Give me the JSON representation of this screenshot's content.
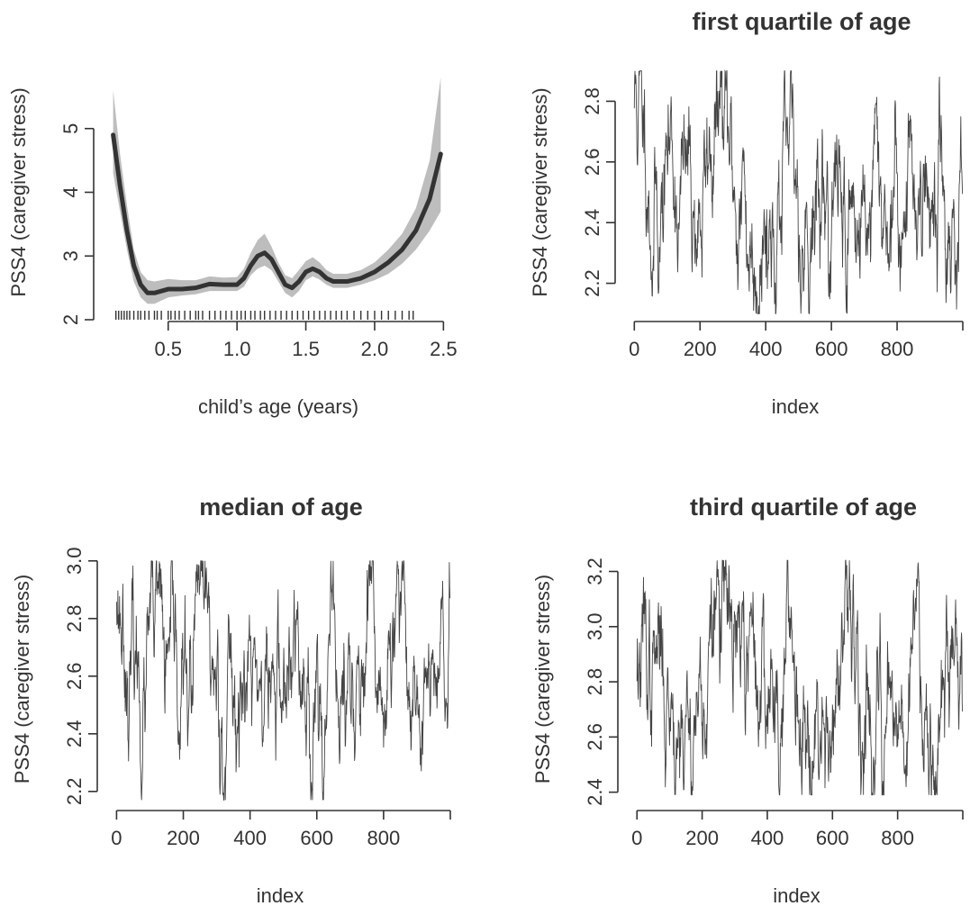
{
  "chart_data": [
    {
      "type": "line",
      "title": "",
      "xlabel": "child’s age (years)",
      "ylabel": "PSS4 (caregiver stress)",
      "xlim": [
        0.05,
        2.55
      ],
      "ylim": [
        2.0,
        6.0
      ],
      "x_ticks": [
        "0.5",
        "1.0",
        "1.5",
        "2.0",
        "2.5"
      ],
      "y_ticks": [
        "2",
        "3",
        "4",
        "5"
      ],
      "grid": false,
      "series": [
        {
          "x": [
            0.1,
            0.15,
            0.2,
            0.25,
            0.3,
            0.35,
            0.4,
            0.45,
            0.5,
            0.6,
            0.7,
            0.8,
            0.9,
            1.0,
            1.05,
            1.1,
            1.15,
            1.2,
            1.25,
            1.3,
            1.35,
            1.4,
            1.45,
            1.5,
            1.55,
            1.6,
            1.65,
            1.7,
            1.8,
            1.9,
            2.0,
            2.1,
            2.2,
            2.3,
            2.4,
            2.48
          ],
          "y": [
            4.9,
            4.1,
            3.4,
            2.85,
            2.55,
            2.42,
            2.42,
            2.45,
            2.48,
            2.48,
            2.5,
            2.56,
            2.55,
            2.55,
            2.65,
            2.85,
            3.0,
            3.05,
            2.95,
            2.75,
            2.55,
            2.5,
            2.6,
            2.75,
            2.8,
            2.75,
            2.65,
            2.6,
            2.6,
            2.65,
            2.75,
            2.9,
            3.1,
            3.4,
            3.9,
            4.6
          ],
          "lower": [
            4.3,
            3.7,
            3.1,
            2.6,
            2.35,
            2.25,
            2.25,
            2.3,
            2.35,
            2.38,
            2.4,
            2.45,
            2.45,
            2.45,
            2.52,
            2.7,
            2.8,
            2.85,
            2.78,
            2.6,
            2.42,
            2.35,
            2.45,
            2.62,
            2.68,
            2.63,
            2.55,
            2.5,
            2.5,
            2.55,
            2.62,
            2.72,
            2.88,
            3.1,
            3.4,
            3.7
          ],
          "upper": [
            5.6,
            4.6,
            3.8,
            3.1,
            2.75,
            2.62,
            2.6,
            2.62,
            2.64,
            2.62,
            2.62,
            2.68,
            2.66,
            2.67,
            2.8,
            3.05,
            3.25,
            3.35,
            3.15,
            2.9,
            2.7,
            2.65,
            2.78,
            2.92,
            2.98,
            2.9,
            2.78,
            2.72,
            2.72,
            2.78,
            2.9,
            3.1,
            3.35,
            3.75,
            4.5,
            5.8
          ]
        }
      ],
      "rug_x": [
        0.12,
        0.14,
        0.16,
        0.18,
        0.2,
        0.22,
        0.25,
        0.28,
        0.3,
        0.33,
        0.36,
        0.4,
        0.42,
        0.45,
        0.5,
        0.52,
        0.55,
        0.58,
        0.62,
        0.66,
        0.7,
        0.72,
        0.75,
        0.8,
        0.84,
        0.88,
        0.92,
        0.96,
        1.0,
        1.03,
        1.06,
        1.1,
        1.13,
        1.17,
        1.2,
        1.24,
        1.28,
        1.32,
        1.36,
        1.4,
        1.44,
        1.48,
        1.52,
        1.56,
        1.6,
        1.64,
        1.68,
        1.72,
        1.76,
        1.8,
        1.85,
        1.9,
        1.95,
        2.0,
        2.05,
        2.1,
        2.15,
        2.2,
        2.25,
        2.28
      ]
    },
    {
      "type": "line",
      "title": "first quartile of age",
      "xlabel": "index",
      "ylabel": "PSS4 (caregiver stress)",
      "xlim": [
        -20,
        1000
      ],
      "ylim": [
        2.08,
        2.92
      ],
      "x_ticks": [
        "0",
        "200",
        "400",
        "600",
        "800"
      ],
      "y_ticks": [
        "2.2",
        "2.4",
        "2.6",
        "2.8"
      ],
      "grid": false,
      "trace": {
        "n": 1000,
        "seed": 11,
        "mean": 2.47,
        "sd": 0.13,
        "ar": 0.93,
        "y0": 2.8,
        "bumps": [
          [
            0,
            40,
            0.3
          ],
          [
            80,
            130,
            0.15
          ],
          [
            220,
            270,
            0.3
          ],
          [
            330,
            370,
            -0.15
          ],
          [
            830,
            880,
            0.12
          ]
        ],
        "min": 2.1,
        "max": 2.9
      }
    },
    {
      "type": "line",
      "title": "median of age",
      "xlabel": "index",
      "ylabel": "PSS4 (caregiver stress)",
      "xlim": [
        -20,
        1000
      ],
      "ylim": [
        2.14,
        3.04
      ],
      "x_ticks": [
        "0",
        "200",
        "400",
        "600",
        "800"
      ],
      "y_ticks": [
        "2.2",
        "2.4",
        "2.6",
        "2.8",
        "3.0"
      ],
      "grid": false,
      "trace": {
        "n": 1000,
        "seed": 23,
        "mean": 2.55,
        "sd": 0.13,
        "ar": 0.93,
        "y0": 2.95,
        "bumps": [
          [
            0,
            30,
            0.3
          ],
          [
            90,
            130,
            0.15
          ],
          [
            230,
            270,
            0.25
          ],
          [
            140,
            160,
            -0.15
          ],
          [
            840,
            900,
            0.12
          ],
          [
            930,
            950,
            -0.12
          ]
        ],
        "min": 2.17,
        "max": 3.0
      }
    },
    {
      "type": "line",
      "title": "third quartile of age",
      "xlabel": "index",
      "ylabel": "PSS4 (caregiver stress)",
      "xlim": [
        -20,
        1000
      ],
      "ylim": [
        2.34,
        3.28
      ],
      "x_ticks": [
        "0",
        "200",
        "400",
        "600",
        "800"
      ],
      "y_ticks": [
        "2.4",
        "2.6",
        "2.8",
        "3.0",
        "3.2"
      ],
      "grid": false,
      "trace": {
        "n": 1000,
        "seed": 37,
        "mean": 2.8,
        "sd": 0.14,
        "ar": 0.93,
        "y0": 2.9,
        "bumps": [
          [
            230,
            270,
            0.3
          ],
          [
            440,
            490,
            0.2
          ],
          [
            140,
            170,
            -0.2
          ],
          [
            720,
            760,
            -0.15
          ],
          [
            830,
            870,
            0.25
          ]
        ],
        "min": 2.39,
        "max": 3.24
      }
    }
  ]
}
